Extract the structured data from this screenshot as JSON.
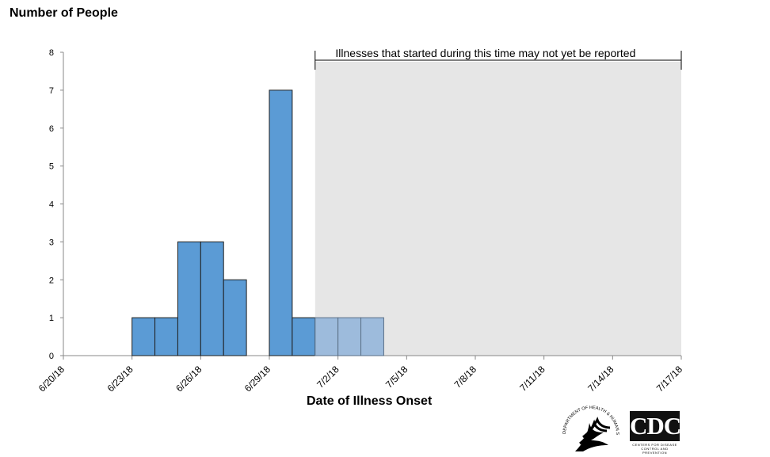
{
  "chart_data": {
    "type": "bar",
    "ylabel": "Number of People",
    "xlabel": "Date of Illness Onset",
    "ylim": [
      0,
      8
    ],
    "y_ticks": [
      0,
      1,
      2,
      3,
      4,
      5,
      6,
      7,
      8
    ],
    "x_tick_labels": [
      "6/20/18",
      "6/23/18",
      "6/26/18",
      "6/29/18",
      "7/2/18",
      "7/5/18",
      "7/8/18",
      "7/11/18",
      "7/14/18",
      "7/17/18"
    ],
    "x_range": [
      "6/20/18",
      "7/17/18"
    ],
    "bars": [
      {
        "date": "6/23/18",
        "value": 1
      },
      {
        "date": "6/24/18",
        "value": 1
      },
      {
        "date": "6/25/18",
        "value": 3
      },
      {
        "date": "6/26/18",
        "value": 3
      },
      {
        "date": "6/27/18",
        "value": 2
      },
      {
        "date": "6/29/18",
        "value": 7
      },
      {
        "date": "6/30/18",
        "value": 1
      },
      {
        "date": "7/1/18",
        "value": 1
      },
      {
        "date": "7/2/18",
        "value": 1
      },
      {
        "date": "7/3/18",
        "value": 1
      }
    ],
    "shaded_region": {
      "start": "7/1/18",
      "end": "7/17/18",
      "label": "Illnesses that started during this time may not yet be reported"
    },
    "colors": {
      "bar": "#5b9bd5",
      "bar_shaded": "#9dbbdc",
      "shade": "#e6e6e6",
      "outline": "#1f1f1f"
    },
    "grid": false,
    "legend": "none"
  },
  "logos": {
    "hhs_text": "DEPARTMENT OF HEALTH & HUMAN SERVICES USA",
    "cdc_text": "CDC",
    "cdc_subtext_1": "CENTERS FOR DISEASE",
    "cdc_subtext_2": "CONTROL AND PREVENTION"
  }
}
